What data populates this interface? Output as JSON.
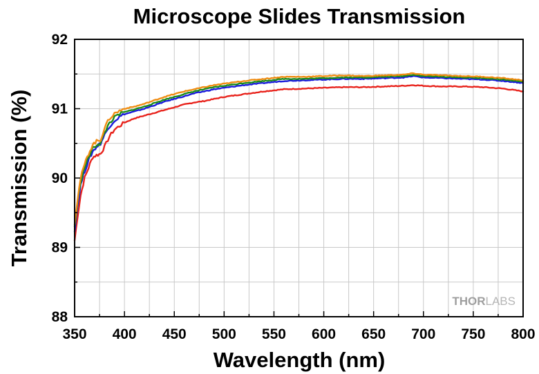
{
  "chart_data": {
    "type": "line",
    "title": "Microscope Slides Transmission",
    "xlabel": "Wavelength (nm)",
    "ylabel": "Transmission (%)",
    "xlim": [
      350,
      800
    ],
    "ylim": [
      88,
      92
    ],
    "x_ticks": [
      350,
      400,
      450,
      500,
      550,
      600,
      650,
      700,
      750,
      800
    ],
    "y_ticks": [
      88,
      89,
      90,
      91,
      92
    ],
    "grid": true,
    "legend": "none",
    "series": [
      {
        "color": "#e8231c",
        "points": [
          [
            350,
            89.1
          ],
          [
            353,
            89.45
          ],
          [
            356,
            89.75
          ],
          [
            360,
            90.0
          ],
          [
            364,
            90.15
          ],
          [
            368,
            90.3
          ],
          [
            372,
            90.33
          ],
          [
            376,
            90.35
          ],
          [
            380,
            90.45
          ],
          [
            385,
            90.6
          ],
          [
            390,
            90.7
          ],
          [
            395,
            90.75
          ],
          [
            400,
            90.8
          ],
          [
            410,
            90.86
          ],
          [
            420,
            90.9
          ],
          [
            430,
            90.94
          ],
          [
            440,
            90.98
          ],
          [
            450,
            91.02
          ],
          [
            460,
            91.06
          ],
          [
            470,
            91.09
          ],
          [
            480,
            91.11
          ],
          [
            490,
            91.14
          ],
          [
            500,
            91.17
          ],
          [
            520,
            91.21
          ],
          [
            540,
            91.25
          ],
          [
            560,
            91.28
          ],
          [
            580,
            91.29
          ],
          [
            600,
            91.3
          ],
          [
            620,
            91.31
          ],
          [
            640,
            91.31
          ],
          [
            660,
            91.32
          ],
          [
            680,
            91.33
          ],
          [
            690,
            91.34
          ],
          [
            700,
            91.33
          ],
          [
            720,
            91.32
          ],
          [
            740,
            91.32
          ],
          [
            760,
            91.31
          ],
          [
            780,
            91.29
          ],
          [
            800,
            91.25
          ]
        ]
      },
      {
        "color": "#1a1adc",
        "points": [
          [
            350,
            89.25
          ],
          [
            353,
            89.6
          ],
          [
            356,
            89.9
          ],
          [
            360,
            90.1
          ],
          [
            364,
            90.25
          ],
          [
            368,
            90.38
          ],
          [
            372,
            90.45
          ],
          [
            376,
            90.5
          ],
          [
            380,
            90.62
          ],
          [
            385,
            90.75
          ],
          [
            390,
            90.83
          ],
          [
            395,
            90.88
          ],
          [
            400,
            90.92
          ],
          [
            410,
            90.96
          ],
          [
            420,
            91.0
          ],
          [
            430,
            91.05
          ],
          [
            440,
            91.1
          ],
          [
            450,
            91.14
          ],
          [
            460,
            91.18
          ],
          [
            470,
            91.22
          ],
          [
            480,
            91.25
          ],
          [
            490,
            91.28
          ],
          [
            500,
            91.3
          ],
          [
            520,
            91.34
          ],
          [
            540,
            91.37
          ],
          [
            560,
            91.4
          ],
          [
            580,
            91.41
          ],
          [
            600,
            91.42
          ],
          [
            620,
            91.43
          ],
          [
            640,
            91.43
          ],
          [
            660,
            91.44
          ],
          [
            680,
            91.45
          ],
          [
            690,
            91.47
          ],
          [
            700,
            91.45
          ],
          [
            720,
            91.44
          ],
          [
            740,
            91.43
          ],
          [
            760,
            91.42
          ],
          [
            780,
            91.4
          ],
          [
            800,
            91.37
          ]
        ]
      },
      {
        "color": "#1a8a1a",
        "points": [
          [
            350,
            89.3
          ],
          [
            353,
            89.65
          ],
          [
            356,
            89.95
          ],
          [
            360,
            90.15
          ],
          [
            364,
            90.3
          ],
          [
            368,
            90.42
          ],
          [
            372,
            90.48
          ],
          [
            376,
            90.5
          ],
          [
            380,
            90.65
          ],
          [
            385,
            90.8
          ],
          [
            390,
            90.87
          ],
          [
            395,
            90.92
          ],
          [
            400,
            90.95
          ],
          [
            410,
            90.99
          ],
          [
            420,
            91.03
          ],
          [
            430,
            91.08
          ],
          [
            440,
            91.13
          ],
          [
            450,
            91.17
          ],
          [
            460,
            91.21
          ],
          [
            470,
            91.25
          ],
          [
            480,
            91.28
          ],
          [
            490,
            91.31
          ],
          [
            500,
            91.33
          ],
          [
            520,
            91.37
          ],
          [
            540,
            91.4
          ],
          [
            560,
            91.43
          ],
          [
            580,
            91.43
          ],
          [
            600,
            91.44
          ],
          [
            620,
            91.45
          ],
          [
            640,
            91.45
          ],
          [
            660,
            91.46
          ],
          [
            680,
            91.47
          ],
          [
            690,
            91.49
          ],
          [
            700,
            91.47
          ],
          [
            720,
            91.46
          ],
          [
            740,
            91.45
          ],
          [
            760,
            91.44
          ],
          [
            780,
            91.42
          ],
          [
            800,
            91.39
          ]
        ]
      },
      {
        "color": "#f08c12",
        "points": [
          [
            350,
            89.35
          ],
          [
            353,
            89.7
          ],
          [
            356,
            90.0
          ],
          [
            360,
            90.2
          ],
          [
            364,
            90.35
          ],
          [
            368,
            90.48
          ],
          [
            372,
            90.53
          ],
          [
            376,
            90.55
          ],
          [
            380,
            90.72
          ],
          [
            385,
            90.86
          ],
          [
            390,
            90.93
          ],
          [
            395,
            90.97
          ],
          [
            400,
            91.0
          ],
          [
            410,
            91.03
          ],
          [
            420,
            91.07
          ],
          [
            430,
            91.12
          ],
          [
            440,
            91.17
          ],
          [
            450,
            91.21
          ],
          [
            460,
            91.25
          ],
          [
            470,
            91.28
          ],
          [
            480,
            91.31
          ],
          [
            490,
            91.34
          ],
          [
            500,
            91.36
          ],
          [
            520,
            91.4
          ],
          [
            540,
            91.43
          ],
          [
            560,
            91.46
          ],
          [
            580,
            91.46
          ],
          [
            600,
            91.47
          ],
          [
            620,
            91.48
          ],
          [
            640,
            91.47
          ],
          [
            660,
            91.48
          ],
          [
            680,
            91.49
          ],
          [
            690,
            91.51
          ],
          [
            700,
            91.49
          ],
          [
            720,
            91.48
          ],
          [
            740,
            91.47
          ],
          [
            760,
            91.46
          ],
          [
            780,
            91.44
          ],
          [
            800,
            91.41
          ]
        ]
      }
    ]
  },
  "watermark": {
    "part1": "THOR",
    "part2": "LABS"
  }
}
